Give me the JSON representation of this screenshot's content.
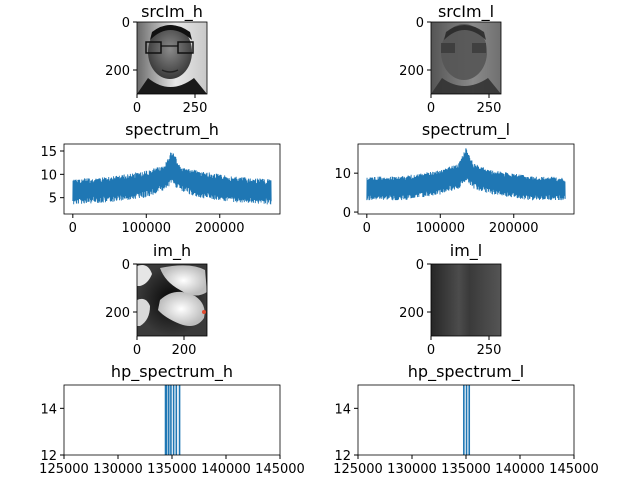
{
  "figure": {
    "background": "#ffffff",
    "line_color": "#1f77b4"
  },
  "chart_data": [
    {
      "type": "image",
      "title": "srcIm_h",
      "content": "grayscale face photo with glasses",
      "xlim": [
        0,
        300
      ],
      "ylim": [
        300,
        0
      ],
      "xticks": [
        {
          "v": 0,
          "label": "0"
        },
        {
          "v": 250,
          "label": "250"
        }
      ],
      "yticks": [
        {
          "v": 0,
          "label": "0"
        },
        {
          "v": 200,
          "label": "200"
        }
      ]
    },
    {
      "type": "image",
      "title": "srcIm_l",
      "content": "blurred grayscale face photo",
      "xlim": [
        0,
        300
      ],
      "ylim": [
        300,
        0
      ],
      "xticks": [
        {
          "v": 0,
          "label": "0"
        },
        {
          "v": 250,
          "label": "250"
        }
      ],
      "yticks": [
        {
          "v": 0,
          "label": "0"
        },
        {
          "v": 200,
          "label": "200"
        }
      ]
    },
    {
      "type": "line",
      "title": "spectrum_h",
      "xlim": [
        -12000,
        282000
      ],
      "ylim": [
        1.5,
        16.5
      ],
      "xticks": [
        {
          "v": 0,
          "label": "0"
        },
        {
          "v": 100000,
          "label": "100000"
        },
        {
          "v": 200000,
          "label": "200000"
        }
      ],
      "yticks": [
        {
          "v": 5,
          "label": "5"
        },
        {
          "v": 10,
          "label": "10"
        },
        {
          "v": 15,
          "label": "15"
        }
      ],
      "center": 135000,
      "envelope": [
        {
          "x": 0,
          "lo": 3.5,
          "hi": 9.0
        },
        {
          "x": 50000,
          "lo": 4.0,
          "hi": 9.5
        },
        {
          "x": 100000,
          "lo": 5.0,
          "hi": 10.8
        },
        {
          "x": 125000,
          "lo": 6.5,
          "hi": 12.0
        },
        {
          "x": 135000,
          "lo": 8.0,
          "hi": 15.5
        },
        {
          "x": 145000,
          "lo": 6.5,
          "hi": 12.0
        },
        {
          "x": 170000,
          "lo": 5.0,
          "hi": 10.8
        },
        {
          "x": 220000,
          "lo": 4.0,
          "hi": 9.5
        },
        {
          "x": 270000,
          "lo": 3.5,
          "hi": 9.0
        }
      ]
    },
    {
      "type": "line",
      "title": "spectrum_l",
      "xlim": [
        -12000,
        282000
      ],
      "ylim": [
        -0.5,
        17.5
      ],
      "xticks": [
        {
          "v": 0,
          "label": "0"
        },
        {
          "v": 100000,
          "label": "100000"
        },
        {
          "v": 200000,
          "label": "200000"
        }
      ],
      "yticks": [
        {
          "v": 0,
          "label": "0"
        },
        {
          "v": 10,
          "label": "10"
        }
      ],
      "center": 135000,
      "envelope": [
        {
          "x": 0,
          "lo": 3.0,
          "hi": 9.0
        },
        {
          "x": 50000,
          "lo": 3.0,
          "hi": 9.3
        },
        {
          "x": 100000,
          "lo": 4.5,
          "hi": 10.8
        },
        {
          "x": 125000,
          "lo": 6.0,
          "hi": 12.5
        },
        {
          "x": 135000,
          "lo": 8.0,
          "hi": 16.5
        },
        {
          "x": 145000,
          "lo": 6.0,
          "hi": 12.5
        },
        {
          "x": 170000,
          "lo": 4.5,
          "hi": 10.8
        },
        {
          "x": 220000,
          "lo": 3.0,
          "hi": 9.3
        },
        {
          "x": 270000,
          "lo": 3.0,
          "hi": 9.0
        }
      ]
    },
    {
      "type": "image",
      "title": "im_h",
      "content": "grayscale blob pattern (high-pass reconstruction)",
      "xlim": [
        0,
        300
      ],
      "ylim": [
        300,
        0
      ],
      "xticks": [
        {
          "v": 0,
          "label": "0"
        },
        {
          "v": 200,
          "label": "200"
        }
      ],
      "yticks": [
        {
          "v": 0,
          "label": "0"
        },
        {
          "v": 200,
          "label": "200"
        }
      ]
    },
    {
      "type": "image",
      "title": "im_l",
      "content": "smooth dark gray vertical gradient (low-pass reconstruction)",
      "xlim": [
        0,
        300
      ],
      "ylim": [
        300,
        0
      ],
      "xticks": [
        {
          "v": 0,
          "label": "0"
        },
        {
          "v": 250,
          "label": "250"
        }
      ],
      "yticks": [
        {
          "v": 0,
          "label": "0"
        },
        {
          "v": 200,
          "label": "200"
        }
      ]
    },
    {
      "type": "bar",
      "title": "hp_spectrum_h",
      "xlim": [
        125000,
        145000
      ],
      "ylim": [
        12,
        15
      ],
      "xticks": [
        {
          "v": 125000,
          "label": "125000"
        },
        {
          "v": 130000,
          "label": "130000"
        },
        {
          "v": 135000,
          "label": "135000"
        },
        {
          "v": 140000,
          "label": "140000"
        },
        {
          "v": 145000,
          "label": "145000"
        }
      ],
      "yticks": [
        {
          "v": 12,
          "label": "12"
        },
        {
          "v": 14,
          "label": "14"
        }
      ],
      "lines_x": [
        134400,
        134500,
        134700,
        134900,
        135150,
        135400,
        135700
      ]
    },
    {
      "type": "bar",
      "title": "hp_spectrum_l",
      "xlim": [
        125000,
        145000
      ],
      "ylim": [
        12,
        15
      ],
      "xticks": [
        {
          "v": 125000,
          "label": "125000"
        },
        {
          "v": 130000,
          "label": "130000"
        },
        {
          "v": 135000,
          "label": "135000"
        },
        {
          "v": 140000,
          "label": "140000"
        },
        {
          "v": 145000,
          "label": "145000"
        }
      ],
      "yticks": [
        {
          "v": 12,
          "label": "12"
        },
        {
          "v": 14,
          "label": "14"
        }
      ],
      "lines_x": [
        134800,
        135050,
        135300
      ]
    }
  ]
}
